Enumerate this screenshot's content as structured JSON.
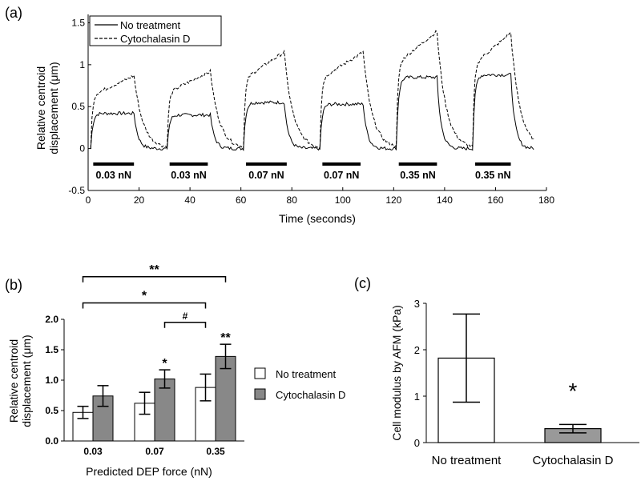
{
  "panels": [
    {
      "letter": "(a)",
      "type": "line",
      "xlabel": "Time (seconds)",
      "ylabel_lines": [
        "Relative centroid",
        "displacement (μm)"
      ],
      "xlim": [
        0,
        180
      ],
      "ylim": [
        -0.5,
        1.6
      ],
      "xticks": [
        0,
        20,
        40,
        60,
        80,
        100,
        120,
        140,
        160,
        180
      ],
      "yticks": [
        -0.5,
        0,
        0.5,
        1,
        1.5
      ],
      "ytick_labels": [
        "-0.5",
        "0",
        "0.5",
        "1",
        "1.5"
      ],
      "legend_position": "top-left",
      "series": [
        {
          "name": "No treatment",
          "dash": "solid",
          "color": "#000000",
          "pulses": [
            {
              "start": 1,
              "end": 18,
              "plateau": 0.42
            },
            {
              "start": 31,
              "end": 48,
              "plateau": 0.4
            },
            {
              "start": 61,
              "end": 77,
              "plateau": 0.55
            },
            {
              "start": 91,
              "end": 108,
              "plateau": 0.53
            },
            {
              "start": 121,
              "end": 137,
              "plateau": 0.85
            },
            {
              "start": 151,
              "end": 166,
              "plateau": 0.88
            }
          ]
        },
        {
          "name": "Cytochalasin D",
          "dash": "dashed",
          "color": "#000000",
          "pulses": [
            {
              "start": 1,
              "end": 18,
              "plateau": 0.87
            },
            {
              "start": 31,
              "end": 48,
              "plateau": 0.92
            },
            {
              "start": 61,
              "end": 77,
              "plateau": 1.15
            },
            {
              "start": 91,
              "end": 108,
              "plateau": 1.15
            },
            {
              "start": 121,
              "end": 137,
              "plateau": 1.4
            },
            {
              "start": 151,
              "end": 166,
              "plateau": 1.38
            }
          ]
        }
      ],
      "force_bars": [
        {
          "start": 2,
          "end": 18,
          "label": "0.03 nN"
        },
        {
          "start": 32,
          "end": 47,
          "label": "0.03 nN"
        },
        {
          "start": 62,
          "end": 78,
          "label": "0.07 nN"
        },
        {
          "start": 92,
          "end": 107,
          "label": "0.07 nN"
        },
        {
          "start": 122,
          "end": 137,
          "label": "0.35 nN"
        },
        {
          "start": 152,
          "end": 166,
          "label": "0.35 nN"
        }
      ]
    },
    {
      "letter": "(b)",
      "type": "bar",
      "xlabel": "Predicted DEP force (nN)",
      "ylabel_lines": [
        "Relative centroid",
        "displacement (μm)"
      ],
      "categories": [
        "0.03",
        "0.07",
        "0.35"
      ],
      "ylim": [
        0,
        2
      ],
      "yticks": [
        0,
        0.5,
        1,
        1.5,
        2
      ],
      "ytick_labels": [
        "0.0",
        "0.5",
        "1.0",
        "1.5",
        "2.0"
      ],
      "legend_position": "right",
      "series": [
        {
          "name": "No treatment",
          "color": "#ffffff",
          "values": [
            0.47,
            0.62,
            0.88
          ],
          "errors": [
            0.1,
            0.18,
            0.22
          ]
        },
        {
          "name": "Cytochalasin D",
          "color": "#888888",
          "values": [
            0.74,
            1.02,
            1.39
          ],
          "errors": [
            0.17,
            0.15,
            0.2
          ]
        }
      ],
      "bar_marks": [
        {
          "category": 1,
          "series": 1,
          "text": "*"
        },
        {
          "category": 2,
          "series": 1,
          "text": "**"
        }
      ],
      "brackets": [
        {
          "from_category": 0,
          "to_category": 2,
          "text": "**",
          "level": 2.7
        },
        {
          "from_category": 0,
          "to_category": 2,
          "text": "*",
          "level": 2.27,
          "to_series": 0
        },
        {
          "from_category": 1,
          "to_category": 2,
          "text": "#",
          "level": 1.95,
          "from_series": 1,
          "to_series": 0
        }
      ]
    },
    {
      "letter": "(c)",
      "type": "bar",
      "xlabel": "",
      "ylabel_lines": [
        "Cell modulus by AFM (kPa)"
      ],
      "categories": [
        "No treatment",
        "Cytochalasin D"
      ],
      "ylim": [
        0,
        3
      ],
      "yticks": [
        0,
        1,
        2,
        3
      ],
      "ytick_labels": [
        "0",
        "1",
        "2",
        "3"
      ],
      "values": [
        1.82,
        0.3
      ],
      "errors": [
        0.95,
        0.09
      ],
      "colors": [
        "#ffffff",
        "#999999"
      ],
      "significance": [
        {
          "category": 1,
          "text": "*"
        }
      ]
    }
  ]
}
